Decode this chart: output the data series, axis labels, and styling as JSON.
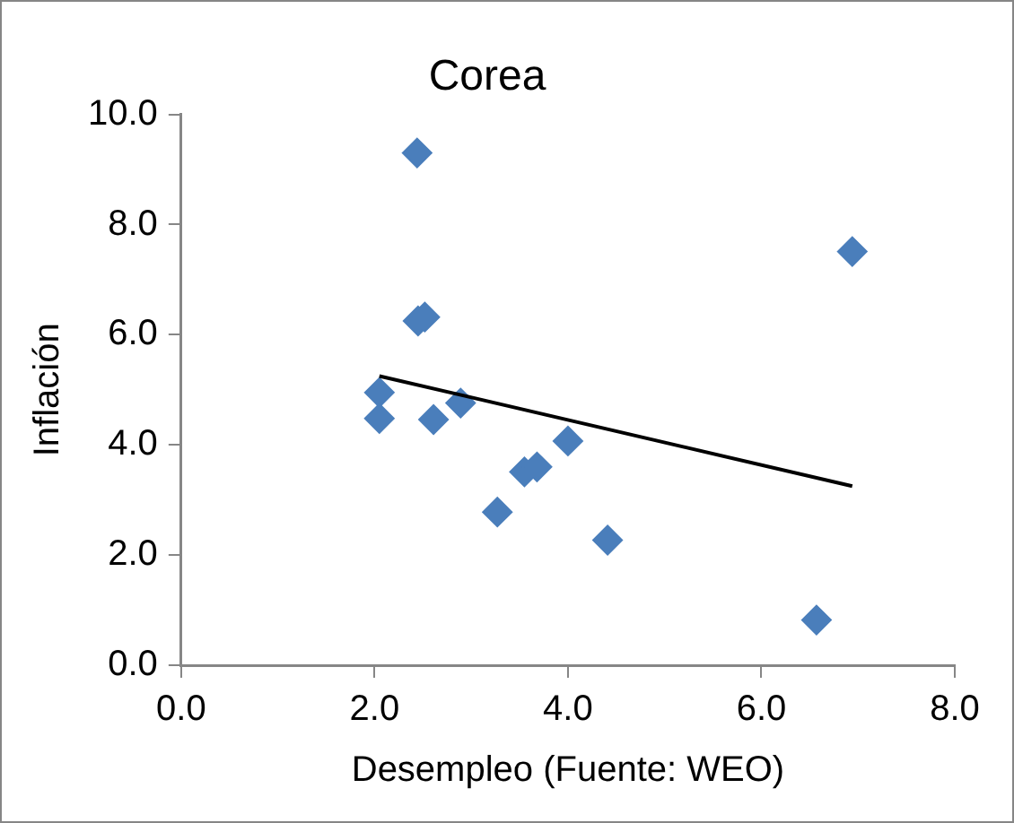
{
  "chart_data": {
    "type": "scatter",
    "title": "Corea",
    "xlabel": "Desempleo (Fuente: WEO)",
    "ylabel": "Inflación",
    "xlim": [
      0,
      8
    ],
    "xticks": [
      {
        "value": 0,
        "label": "0.0"
      },
      {
        "value": 2,
        "label": "2.0"
      },
      {
        "value": 4,
        "label": "4.0"
      },
      {
        "value": 6,
        "label": "6.0"
      },
      {
        "value": 8,
        "label": "8.0"
      }
    ],
    "ylim": [
      0,
      10
    ],
    "yticks": [
      {
        "value": 0,
        "label": "0.0"
      },
      {
        "value": 2,
        "label": "2.0"
      },
      {
        "value": 4,
        "label": "4.0"
      },
      {
        "value": 6,
        "label": "6.0"
      },
      {
        "value": 8,
        "label": "8.0"
      },
      {
        "value": 10,
        "label": "10.0"
      }
    ],
    "grid": false,
    "legend": false,
    "marker": "diamond",
    "series": [
      {
        "color": "#4a7ebb",
        "x": [
          2.44,
          6.94,
          2.45,
          2.52,
          2.05,
          2.05,
          2.61,
          2.89,
          4.0,
          3.55,
          3.68,
          3.27,
          4.41,
          6.57
        ],
        "values": [
          9.3,
          7.51,
          6.25,
          6.32,
          4.95,
          4.48,
          4.46,
          4.76,
          4.07,
          3.51,
          3.6,
          2.78,
          2.27,
          0.82
        ]
      },
      {
        "type": "line",
        "color": "#000000",
        "line_style": "solid",
        "marker": "none",
        "x": [
          2.05,
          6.94
        ],
        "values": [
          5.25,
          3.25
        ]
      }
    ]
  }
}
